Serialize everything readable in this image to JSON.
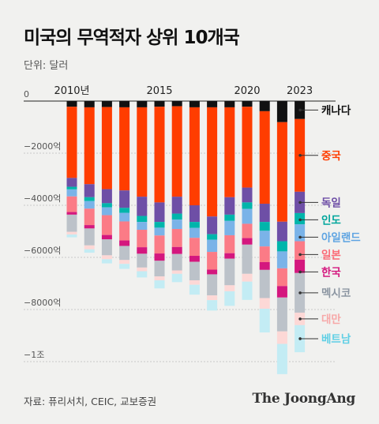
{
  "title": "미국의 무역적자 상위 10개국",
  "unit_label": "단위: 달러",
  "source": "자료: 퓨리서치, CEIC, 교보증권",
  "brand": "The JoongAng",
  "chart_data": {
    "type": "bar",
    "stacked": true,
    "title": "미국의 무역적자 상위 10개국",
    "ylabel": "단위: 달러",
    "ylim": [
      -10900,
      0
    ],
    "y_ticks": [
      0,
      -2000,
      -4000,
      -6000,
      -8000,
      -10000
    ],
    "y_tick_labels": [
      "0",
      "−2000억",
      "−4000억",
      "−6000억",
      "−8000억",
      "−1조"
    ],
    "x": [
      2010,
      2011,
      2012,
      2013,
      2014,
      2015,
      2016,
      2017,
      2018,
      2019,
      2020,
      2021,
      2022,
      2023
    ],
    "x_tick_labels": [
      {
        "x": 2010,
        "label": "2010년"
      },
      {
        "x": 2015,
        "label": "2015"
      },
      {
        "x": 2020,
        "label": "2020"
      },
      {
        "x": 2023,
        "label": "2023"
      }
    ],
    "series": [
      {
        "name": "캐나다",
        "color": "#111111",
        "values": [
          -220,
          -240,
          -230,
          -240,
          -240,
          -220,
          -200,
          -240,
          -240,
          -240,
          -220,
          -390,
          -810,
          -690
        ]
      },
      {
        "name": "중국",
        "color": "#ff3d00",
        "values": [
          -2730,
          -2950,
          -3150,
          -3190,
          -3430,
          -3670,
          -3470,
          -3760,
          -4190,
          -3450,
          -3100,
          -3550,
          -3820,
          -2790
        ]
      },
      {
        "name": "독일",
        "color": "#6e4fa6",
        "values": [
          -340,
          -500,
          -540,
          -670,
          -740,
          -750,
          -650,
          -640,
          -680,
          -670,
          -570,
          -700,
          -750,
          -820
        ]
      },
      {
        "name": "인도",
        "color": "#00b5ab",
        "values": [
          -100,
          -150,
          -160,
          -190,
          -230,
          -220,
          -230,
          -230,
          -210,
          -240,
          -250,
          -340,
          -390,
          -430
        ]
      },
      {
        "name": "아일랜드",
        "color": "#7ab3e8",
        "values": [
          -270,
          -290,
          -300,
          -330,
          -300,
          -300,
          -360,
          -380,
          -470,
          -550,
          -570,
          -600,
          -650,
          -650
        ]
      },
      {
        "name": "일본",
        "color": "#fb7b86",
        "values": [
          -600,
          -630,
          -760,
          -730,
          -670,
          -690,
          -690,
          -690,
          -680,
          -690,
          -550,
          -600,
          -680,
          -710
        ]
      },
      {
        "name": "한국",
        "color": "#d4177e",
        "values": [
          -100,
          -130,
          -170,
          -210,
          -250,
          -280,
          -270,
          -230,
          -180,
          -210,
          -250,
          -300,
          -440,
          -510
        ]
      },
      {
        "name": "멕시코",
        "color": "#bcc2c9",
        "values": [
          -660,
          -650,
          -610,
          -540,
          -530,
          -600,
          -630,
          -710,
          -810,
          -1020,
          -1120,
          -1080,
          -1300,
          -1520
        ]
      },
      {
        "name": "대만",
        "color": "#fdd8d6",
        "values": [
          -100,
          -150,
          -150,
          -150,
          -140,
          -150,
          -130,
          -170,
          -180,
          -230,
          -300,
          -410,
          -480,
          -480
        ]
      },
      {
        "name": "베트남",
        "color": "#c3ecf4",
        "values": [
          -110,
          -130,
          -160,
          -190,
          -240,
          -310,
          -320,
          -380,
          -400,
          -560,
          -700,
          -910,
          -1160,
          -1040
        ]
      }
    ]
  }
}
